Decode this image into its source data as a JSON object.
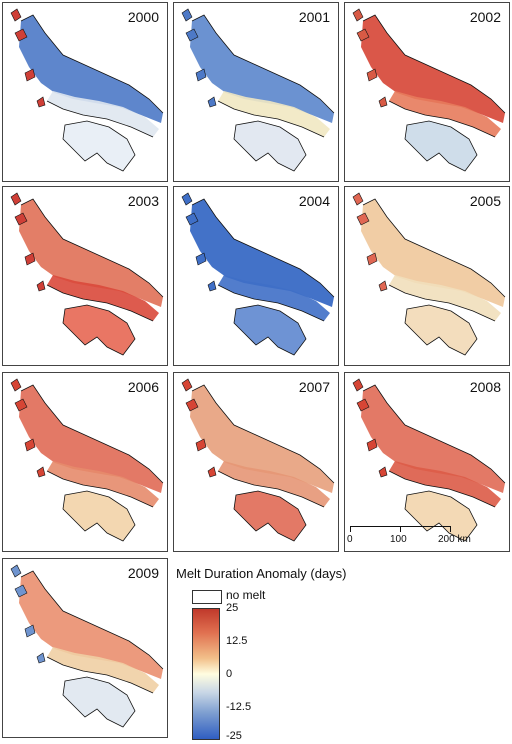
{
  "panels": [
    {
      "year": "2000",
      "palette": {
        "north": "#4d79c7",
        "mid": "#dfe7ef",
        "south": "#e7edf5",
        "accent": "#cf3f37"
      }
    },
    {
      "year": "2001",
      "palette": {
        "north": "#5b86cc",
        "mid": "#f1e8c2",
        "south": "#dfe6ef",
        "accent": "#4d79c7"
      }
    },
    {
      "year": "2002",
      "palette": {
        "north": "#d64535",
        "mid": "#e77b5c",
        "south": "#cad9e8",
        "accent": "#d85a45"
      }
    },
    {
      "year": "2003",
      "palette": {
        "north": "#e07057",
        "mid": "#d9493b",
        "south": "#e76753",
        "accent": "#cf3f37"
      }
    },
    {
      "year": "2004",
      "palette": {
        "north": "#2f63c2",
        "mid": "#3f6fc7",
        "south": "#5e87cf",
        "accent": "#3f6fc7"
      }
    },
    {
      "year": "2005",
      "palette": {
        "north": "#f0c89b",
        "mid": "#f1dfbb",
        "south": "#f2d9b6",
        "accent": "#e06753"
      }
    },
    {
      "year": "2006",
      "palette": {
        "north": "#e06a55",
        "mid": "#e58b6b",
        "south": "#f2d3a9",
        "accent": "#d64535"
      }
    },
    {
      "year": "2007",
      "palette": {
        "north": "#e7a07c",
        "mid": "#e59676",
        "south": "#e06a55",
        "accent": "#d64535"
      }
    },
    {
      "year": "2008",
      "palette": {
        "north": "#e06a55",
        "mid": "#dc5b47",
        "south": "#f2d5ad",
        "accent": "#d64535"
      }
    },
    {
      "year": "2009",
      "palette": {
        "north": "#ea8f6f",
        "mid": "#f0cfa4",
        "south": "#dfe7ef",
        "accent": "#6f94cf"
      }
    }
  ],
  "legend": {
    "title": "Melt Duration Anomaly (days)",
    "no_melt_label": "no melt",
    "ticks": [
      "25",
      "12.5",
      "0",
      "-12.5",
      "-25"
    ],
    "colors": {
      "max": "#c0392b",
      "zero": "#fffde0",
      "min": "#2f5ec2"
    }
  },
  "scalebar": {
    "labels": [
      "0",
      "100",
      "200 km"
    ]
  }
}
